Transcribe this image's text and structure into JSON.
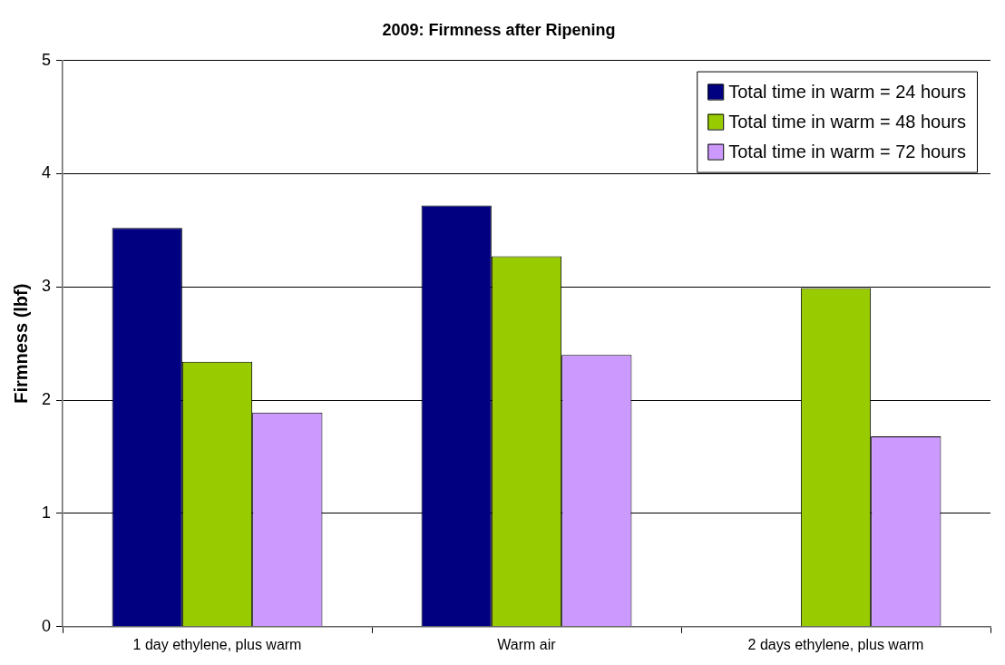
{
  "chart_data": {
    "type": "bar",
    "title": "2009: Firmness after Ripening",
    "ylabel": "Firmness (lbf)",
    "categories": [
      "1 day ethylene, plus warm",
      "Warm air",
      "2 days ethylene, plus warm"
    ],
    "series": [
      {
        "name": "Total time in warm = 24 hours",
        "color": "#000080",
        "values": [
          3.52,
          3.72,
          null
        ]
      },
      {
        "name": "Total time in warm = 48 hours",
        "color": "#99cc00",
        "values": [
          2.34,
          3.27,
          2.99
        ]
      },
      {
        "name": "Total time in warm = 72 hours",
        "color": "#cc99ff",
        "values": [
          1.89,
          2.4,
          1.68
        ]
      }
    ],
    "ylim": [
      0,
      5
    ],
    "yticks": [
      0,
      1,
      2,
      3,
      4,
      5
    ],
    "grid": "y",
    "legend": "top right"
  }
}
